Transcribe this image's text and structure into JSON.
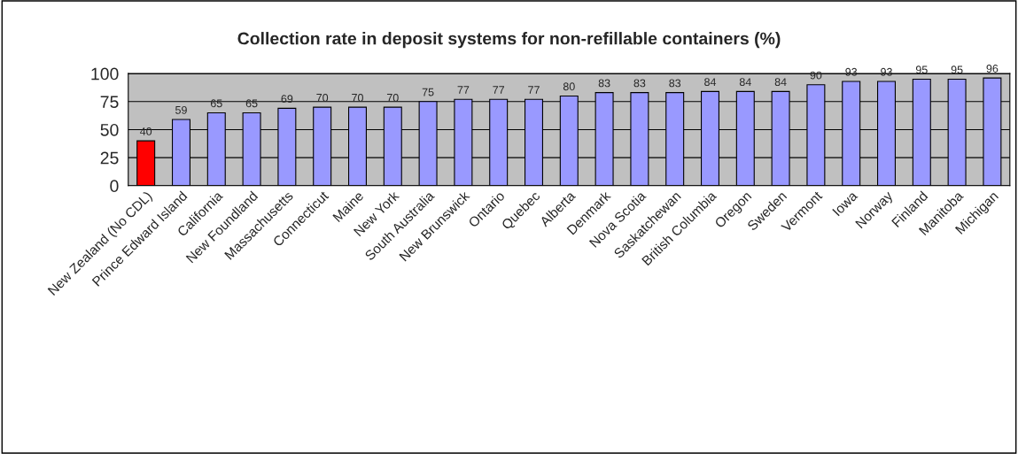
{
  "chart_data": {
    "type": "bar",
    "title": "Collection rate in deposit systems for non-refillable containers (%)",
    "categories": [
      "New Zealand (No CDL)",
      "Prince Edward Island",
      "California",
      "New Foundland",
      "Massachusetts",
      "Connecticut",
      "Maine",
      "New York",
      "South Australia",
      "New Brunswick",
      "Ontario",
      "Quebec",
      "Alberta",
      "Denmark",
      "Nova Scotia",
      "Saskatchewan",
      "British Columbia",
      "Oregon",
      "Sweden",
      "Vermont",
      "Iowa",
      "Norway",
      "Finland",
      "Manitoba",
      "Michigan"
    ],
    "values": [
      40,
      59,
      65,
      65,
      69,
      70,
      70,
      70,
      75,
      77,
      77,
      77,
      80,
      83,
      83,
      83,
      84,
      84,
      84,
      90,
      93,
      93,
      95,
      95,
      96
    ],
    "colors": [
      "#ff0000",
      "#9999ff",
      "#9999ff",
      "#9999ff",
      "#9999ff",
      "#9999ff",
      "#9999ff",
      "#9999ff",
      "#9999ff",
      "#9999ff",
      "#9999ff",
      "#9999ff",
      "#9999ff",
      "#9999ff",
      "#9999ff",
      "#9999ff",
      "#9999ff",
      "#9999ff",
      "#9999ff",
      "#9999ff",
      "#9999ff",
      "#9999ff",
      "#9999ff",
      "#9999ff",
      "#9999ff"
    ],
    "ylim": [
      0,
      100
    ],
    "yticks": [
      0,
      25,
      50,
      75,
      100
    ],
    "grid": "y",
    "data_labels": true,
    "legend": false
  }
}
